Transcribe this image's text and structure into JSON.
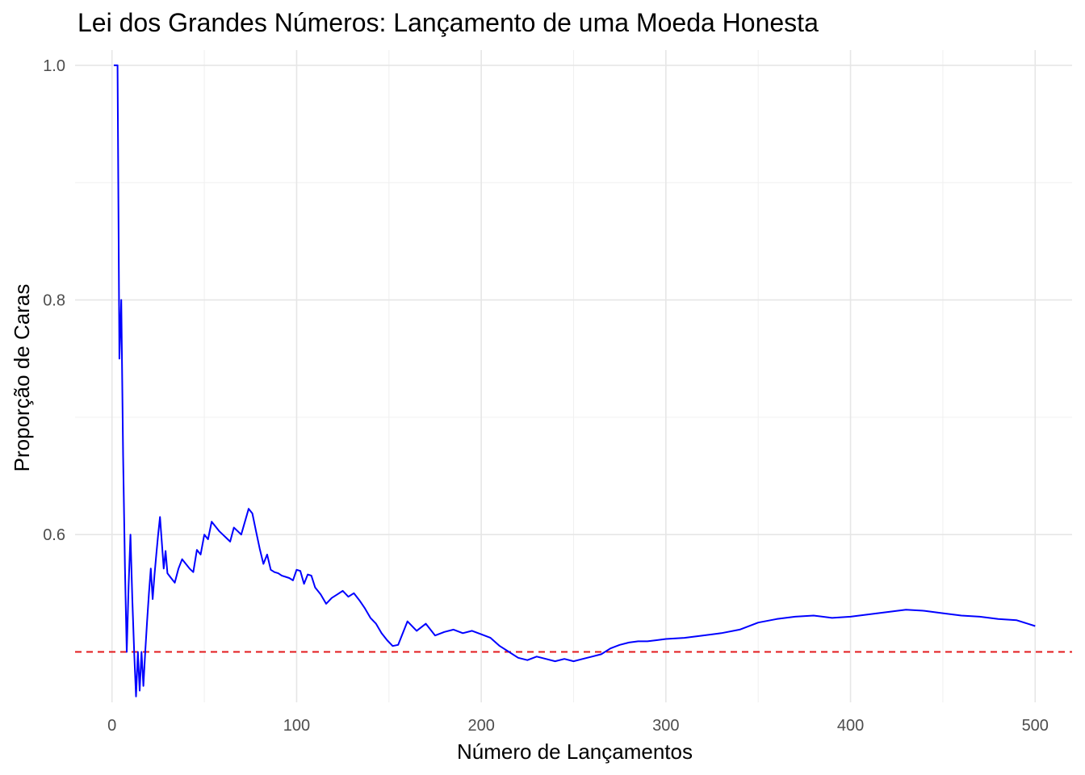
{
  "chart_data": {
    "type": "line",
    "title": "Lei dos Grandes Números: Lançamento de uma Moeda Honesta",
    "xlabel": "Número de Lançamentos",
    "ylabel": "Proporção de Caras",
    "xlim": [
      -20,
      520
    ],
    "ylim": [
      0.457,
      1.013
    ],
    "x_ticks": [
      0,
      100,
      200,
      300,
      400,
      500
    ],
    "x_tick_labels": [
      "0",
      "100",
      "200",
      "300",
      "400",
      "500"
    ],
    "y_ticks": [
      0.6,
      0.8,
      1.0
    ],
    "y_tick_labels": [
      "0.6",
      "0.8",
      "1.0"
    ],
    "grid": true,
    "line_color": "#0000ff",
    "reference_color": "#e31a1c",
    "reference_line": {
      "y": 0.5,
      "style": "dashed"
    },
    "series": [
      {
        "x": [
          1,
          2,
          3,
          4,
          5,
          6,
          7,
          8,
          9,
          10,
          11,
          12,
          13,
          14,
          15,
          16,
          17,
          18,
          19,
          20,
          21,
          22,
          23,
          24,
          25,
          26,
          27,
          28,
          29,
          30,
          32,
          34,
          36,
          38,
          40,
          42,
          44,
          46,
          48,
          50,
          52,
          54,
          56,
          58,
          60,
          62,
          64,
          66,
          68,
          70,
          72,
          74,
          76,
          78,
          80,
          82,
          84,
          86,
          88,
          90,
          92,
          94,
          96,
          98,
          100,
          102,
          104,
          106,
          108,
          110,
          113,
          116,
          119,
          122,
          125,
          128,
          131,
          134,
          137,
          140,
          143,
          146,
          149,
          152,
          155,
          160,
          165,
          170,
          175,
          180,
          185,
          190,
          195,
          200,
          205,
          210,
          215,
          220,
          225,
          230,
          235,
          240,
          245,
          250,
          255,
          260,
          265,
          270,
          275,
          280,
          285,
          290,
          295,
          300,
          310,
          320,
          330,
          340,
          350,
          360,
          370,
          380,
          390,
          400,
          410,
          420,
          430,
          440,
          450,
          460,
          470,
          480,
          490,
          500
        ],
        "y": [
          1.0,
          1.0,
          1.0,
          0.75,
          0.8,
          0.667,
          0.571,
          0.5,
          0.556,
          0.6,
          0.545,
          0.5,
          0.462,
          0.5,
          0.467,
          0.5,
          0.471,
          0.5,
          0.526,
          0.55,
          0.571,
          0.545,
          0.565,
          0.583,
          0.6,
          0.615,
          0.593,
          0.571,
          0.586,
          0.567,
          0.563,
          0.559,
          0.571,
          0.579,
          0.575,
          0.571,
          0.568,
          0.587,
          0.583,
          0.6,
          0.596,
          0.611,
          0.607,
          0.603,
          0.6,
          0.597,
          0.594,
          0.606,
          0.603,
          0.6,
          0.611,
          0.622,
          0.618,
          0.603,
          0.588,
          0.575,
          0.583,
          0.57,
          0.568,
          0.567,
          0.565,
          0.564,
          0.563,
          0.561,
          0.57,
          0.569,
          0.558,
          0.566,
          0.565,
          0.555,
          0.549,
          0.541,
          0.546,
          0.549,
          0.552,
          0.547,
          0.55,
          0.544,
          0.537,
          0.529,
          0.524,
          0.516,
          0.51,
          0.505,
          0.506,
          0.526,
          0.518,
          0.524,
          0.514,
          0.517,
          0.519,
          0.516,
          0.518,
          0.515,
          0.512,
          0.505,
          0.5,
          0.495,
          0.493,
          0.496,
          0.494,
          0.492,
          0.494,
          0.492,
          0.494,
          0.496,
          0.498,
          0.503,
          0.506,
          0.508,
          0.509,
          0.509,
          0.51,
          0.511,
          0.512,
          0.514,
          0.516,
          0.519,
          0.525,
          0.528,
          0.53,
          0.531,
          0.529,
          0.53,
          0.532,
          0.534,
          0.536,
          0.535,
          0.533,
          0.531,
          0.53,
          0.528,
          0.527,
          0.522
        ]
      }
    ]
  }
}
